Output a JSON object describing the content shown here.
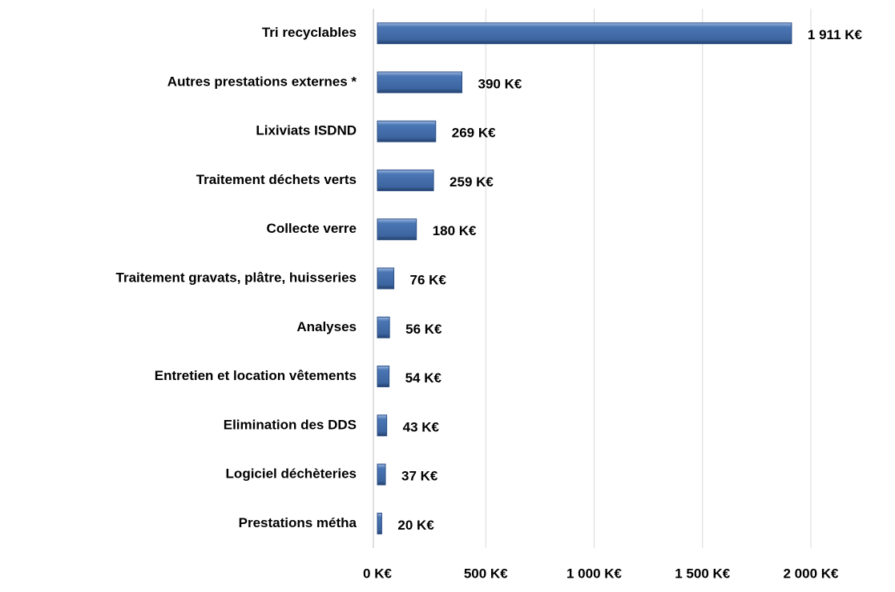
{
  "chart_data": {
    "type": "hbar",
    "categories": [
      "Tri recyclables",
      "Autres prestations externes *",
      "Lixiviats ISDND",
      "Traitement déchets verts",
      "Collecte verre",
      "Traitement gravats, plâtre, huisseries",
      "Analyses",
      "Entretien et location vêtements",
      "Elimination des DDS",
      "Logiciel déchèteries",
      "Prestations métha"
    ],
    "values": [
      1911,
      390,
      269,
      259,
      180,
      76,
      56,
      54,
      43,
      37,
      20
    ],
    "value_labels": [
      "1 911 K€",
      "390 K€",
      "269 K€",
      "259 K€",
      "180 K€",
      "76 K€",
      "56 K€",
      "54 K€",
      "43 K€",
      "37 K€",
      "20 K€"
    ],
    "color": "#4a76b4",
    "xlim": [
      0,
      2000
    ],
    "xticks": [
      {
        "value": 0,
        "label": "0 K€"
      },
      {
        "value": 500,
        "label": "500 K€"
      },
      {
        "value": 1000,
        "label": "1 000 K€"
      },
      {
        "value": 1500,
        "label": "1 500 K€"
      },
      {
        "value": 2000,
        "label": "2 000 K€"
      }
    ],
    "grid": true
  }
}
